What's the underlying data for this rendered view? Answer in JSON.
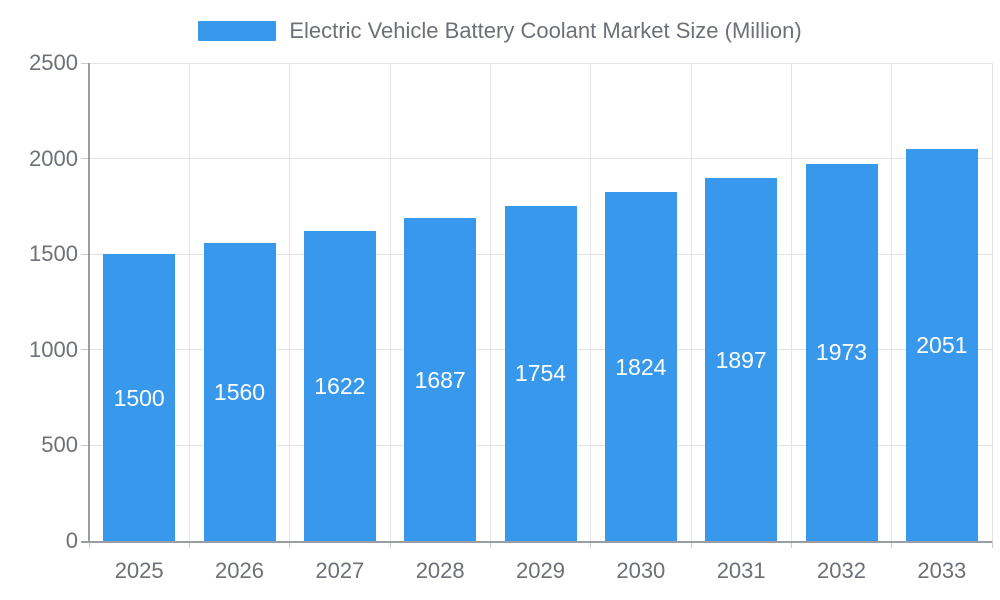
{
  "legend": {
    "label": "Electric Vehicle Battery Coolant Market Size (Million)"
  },
  "chart_data": {
    "type": "bar",
    "title": "Electric Vehicle Battery Coolant Market Size (Million)",
    "categories": [
      "2025",
      "2026",
      "2027",
      "2028",
      "2029",
      "2030",
      "2031",
      "2032",
      "2033"
    ],
    "values": [
      1500,
      1560,
      1622,
      1687,
      1754,
      1824,
      1897,
      1973,
      2051
    ],
    "series": [
      {
        "name": "Electric Vehicle Battery Coolant Market Size (Million)",
        "values": [
          1500,
          1560,
          1622,
          1687,
          1754,
          1824,
          1897,
          1973,
          2051
        ]
      }
    ],
    "xlabel": "",
    "ylabel": "",
    "ylim": [
      0,
      2500
    ],
    "yticks": [
      0,
      500,
      1000,
      1500,
      2000,
      2500
    ],
    "grid": true,
    "legend_position": "top",
    "value_label_position": "inside-center",
    "colors": {
      "bar": "#3899EC",
      "value_label": "#FFFFFF",
      "axis_text": "#6E7079",
      "axis_line": "#9A9DA3",
      "tick": "#C7CAD0",
      "grid": "#E4E4E8",
      "background": "#FFFFFF"
    }
  }
}
